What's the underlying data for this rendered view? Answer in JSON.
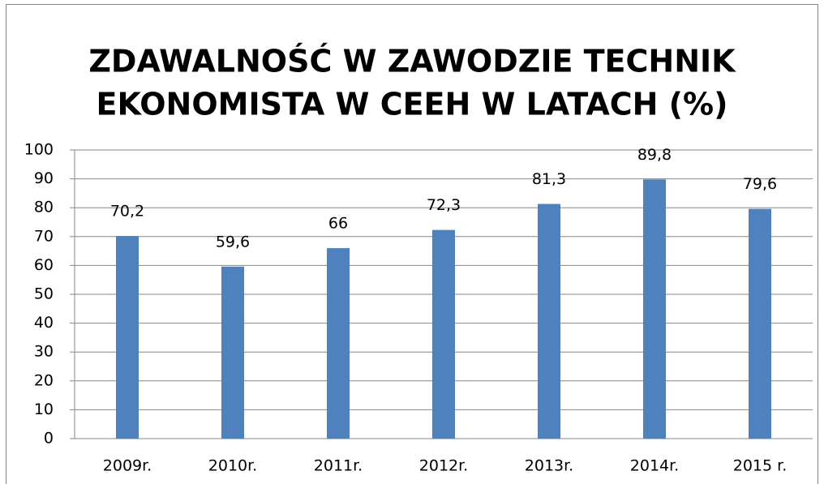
{
  "chart_data": {
    "type": "bar",
    "title": [
      "ZDAWALNOŚĆ W ZAWODZIE TECHNIK",
      "EKONOMISTA W CEEH W LATACH (%)"
    ],
    "categories": [
      "2009r.",
      "2010r.",
      "2011r.",
      "2012r.",
      "2013r.",
      "2014r.",
      "2015 r."
    ],
    "values": [
      70.2,
      59.6,
      66,
      72.3,
      81.3,
      89.8,
      79.6
    ],
    "value_labels": [
      "70,2",
      "59,6",
      "66",
      "72,3",
      "81,3",
      "89,8",
      "79,6"
    ],
    "color": "#4f81bd",
    "ylim": [
      0,
      100
    ],
    "yticks": [
      0,
      10,
      20,
      30,
      40,
      50,
      60,
      70,
      80,
      90,
      100
    ],
    "grid": true
  }
}
